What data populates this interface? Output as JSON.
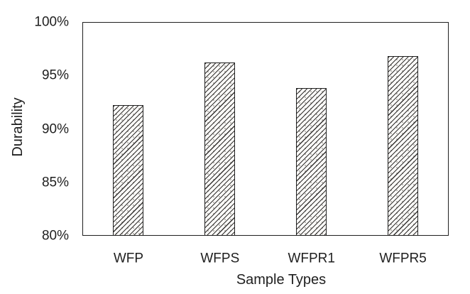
{
  "chart_data": {
    "type": "bar",
    "categories": [
      "WFP",
      "WFPS",
      "WFPR1",
      "WFPR5"
    ],
    "values": [
      92.2,
      96.2,
      93.8,
      96.8
    ],
    "xlabel": "Sample Types",
    "ylabel": "Durability",
    "ylim": [
      80,
      100
    ],
    "yticks": [
      {
        "value": 100,
        "label": "100%"
      },
      {
        "value": 95,
        "label": "95%"
      },
      {
        "value": 90,
        "label": "90%"
      },
      {
        "value": 85,
        "label": "85%"
      },
      {
        "value": 80,
        "label": "80%"
      }
    ],
    "grid": false,
    "legend": false,
    "bar_hatch": "upward-diagonal-crosshatch",
    "bar_fill": "#fbfaf8",
    "bar_border_color": "#1f1f1f",
    "axis_color": "#1f1f1f",
    "text_color": "#1f1f1f",
    "background": "#ffffff"
  }
}
